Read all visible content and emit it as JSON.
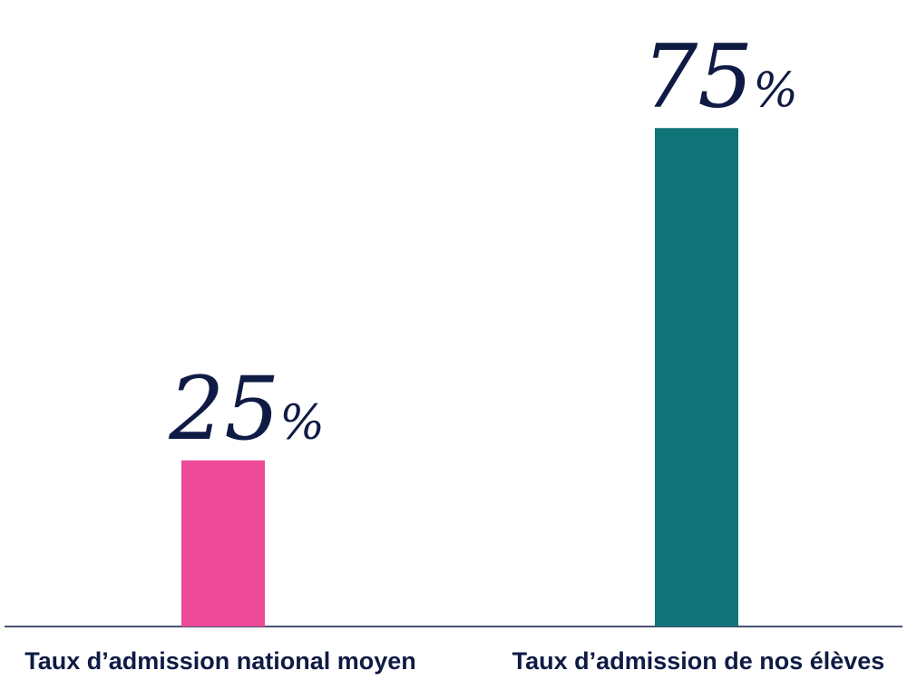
{
  "chart_data": {
    "type": "bar",
    "title": "",
    "xlabel": "",
    "ylabel": "",
    "categories": [
      "Taux d’admission national moyen",
      "Taux d’admission de nos élèves"
    ],
    "values": [
      25,
      75
    ],
    "data_labels": [
      "25",
      "75"
    ],
    "unit_label": "%",
    "ylim": [
      0,
      100
    ],
    "grid": false,
    "legend": "none",
    "colors": [
      "#ec4a98",
      "#107378"
    ],
    "axis_color": "#0f1b44",
    "text_color": "#0f1b44"
  }
}
